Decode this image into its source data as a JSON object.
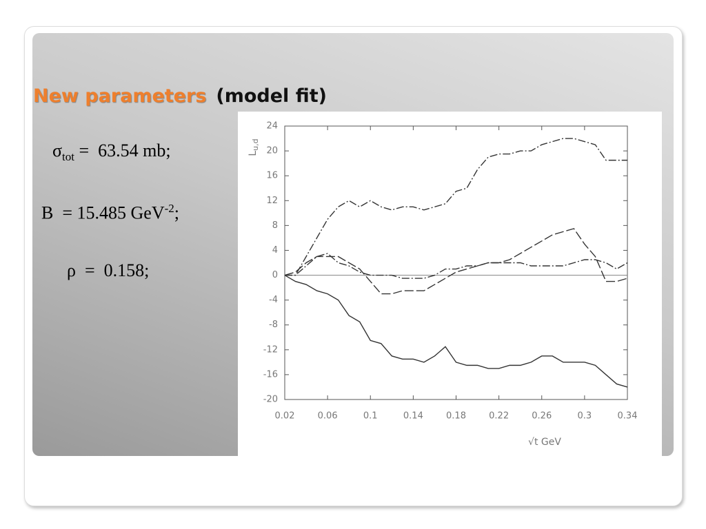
{
  "slide": {
    "title": {
      "highlight": "New parameters",
      "rest": "(model fit)"
    },
    "params": [
      {
        "base": "σ",
        "sub": "tot",
        "tail": "=  63.54 mb;"
      },
      {
        "base": "B  = 15.485 GeV",
        "sup": "-2",
        "tail": ";"
      },
      {
        "base": "ρ  =  0.158;"
      }
    ]
  },
  "chart_data": {
    "type": "line",
    "x_label": "√t GeV",
    "y_label": "L",
    "y_label_sub": "u,d",
    "x": [
      0.02,
      0.03,
      0.04,
      0.05,
      0.06,
      0.07,
      0.08,
      0.09,
      0.1,
      0.11,
      0.12,
      0.13,
      0.14,
      0.15,
      0.16,
      0.17,
      0.18,
      0.19,
      0.2,
      0.21,
      0.22,
      0.23,
      0.24,
      0.25,
      0.26,
      0.27,
      0.28,
      0.29,
      0.3,
      0.31,
      0.32,
      0.33,
      0.34
    ],
    "series": [
      {
        "color": "#333333",
        "dash": "dash-dot",
        "values": [
          0,
          0,
          3,
          6,
          9,
          11,
          12,
          11,
          12,
          11,
          10.5,
          11,
          11,
          10.5,
          11,
          11.5,
          13.5,
          14,
          17,
          19,
          19.5,
          19.5,
          20,
          20,
          21,
          21.5,
          22,
          22,
          21.5,
          21,
          18.5,
          18.5,
          18.5
        ]
      },
      {
        "color": "#333333",
        "dash": "long-dash",
        "values": [
          0,
          0.5,
          2,
          3,
          3,
          3,
          2,
          1,
          -1,
          -3,
          -3,
          -2.5,
          -2.5,
          -2.5,
          -1.5,
          -0.5,
          0.5,
          1,
          1.5,
          2,
          2,
          2.5,
          3.5,
          4.5,
          5.5,
          6.5,
          7,
          7.5,
          5,
          3,
          -1,
          -1,
          -0.5
        ]
      },
      {
        "color": "#333333",
        "dash": "dash-dot",
        "values": [
          0,
          0,
          1.5,
          3,
          3.5,
          2,
          1.5,
          0.5,
          0,
          0,
          0,
          -0.5,
          -0.5,
          -0.5,
          0,
          1,
          1,
          1.5,
          1.5,
          2,
          2,
          2,
          2,
          1.5,
          1.5,
          1.5,
          1.5,
          2,
          2.5,
          2.5,
          2,
          1,
          2
        ]
      },
      {
        "color": "#333333",
        "dash": "solid",
        "values": [
          0,
          -1,
          -1.5,
          -2.5,
          -3,
          -4,
          -6.5,
          -7.5,
          -10.5,
          -11,
          -13,
          -13.5,
          -13.5,
          -14,
          -13,
          -11.5,
          -14,
          -14.5,
          -14.5,
          -15,
          -15,
          -14.5,
          -14.5,
          -14,
          -13,
          -13,
          -14,
          -14,
          -14,
          -14.5,
          -16,
          -17.5,
          -18
        ]
      }
    ],
    "xlim": [
      0.02,
      0.34
    ],
    "xticks": [
      0.02,
      0.06,
      0.1,
      0.14,
      0.18,
      0.22,
      0.26,
      0.3,
      0.34
    ],
    "ylim": [
      -20,
      24
    ],
    "yticks": [
      24,
      20,
      16,
      12,
      8,
      4,
      0,
      -4,
      -8,
      -12,
      -16,
      -20
    ],
    "zero_line": true
  }
}
